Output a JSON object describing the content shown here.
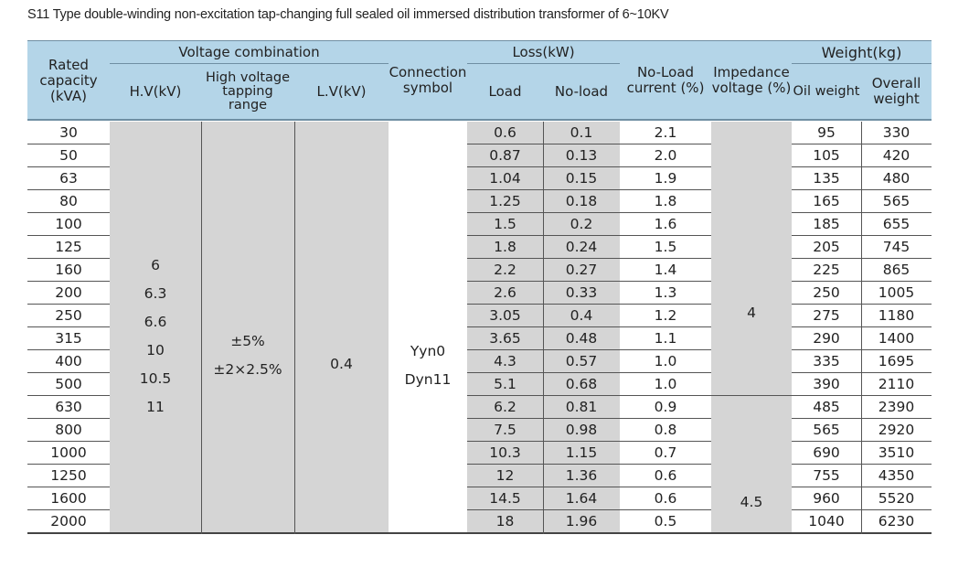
{
  "title": "S11 Type double-winding non-excitation tap-changing full sealed oil immersed distribution transformer of 6~10KV",
  "headers": {
    "rated_capacity": "Rated capacity (kVA)",
    "voltage_combination": "Voltage combination",
    "hv": "H.V(kV)",
    "hv_tapping": "High voltage tapping range",
    "lv": "L.V(kV)",
    "connection": "Connection symbol",
    "loss": "Loss(kW)",
    "load": "Load",
    "noload": "No-load",
    "noload_current": "No-Load current (%)",
    "impedance": "Impedance voltage (%)",
    "weight": "Weight(kg)",
    "oil_weight": "Oil weight",
    "overall_weight": "Overall weight"
  },
  "merged": {
    "hv_values": [
      "6",
      "6.3",
      "6.6",
      "10",
      "10.5",
      "11"
    ],
    "tapping_values": [
      "±5%",
      "±2×2.5%"
    ],
    "lv_value": "0.4",
    "connection_values": [
      "Yyn0",
      "Dyn11"
    ],
    "impedance_top": "4",
    "impedance_bottom": "4.5"
  },
  "rows": [
    {
      "capacity": "30",
      "load": "0.6",
      "noload": "0.1",
      "current": "2.1",
      "oil": "95",
      "overall": "330"
    },
    {
      "capacity": "50",
      "load": "0.87",
      "noload": "0.13",
      "current": "2.0",
      "oil": "105",
      "overall": "420"
    },
    {
      "capacity": "63",
      "load": "1.04",
      "noload": "0.15",
      "current": "1.9",
      "oil": "135",
      "overall": "480"
    },
    {
      "capacity": "80",
      "load": "1.25",
      "noload": "0.18",
      "current": "1.8",
      "oil": "165",
      "overall": "565"
    },
    {
      "capacity": "100",
      "load": "1.5",
      "noload": "0.2",
      "current": "1.6",
      "oil": "185",
      "overall": "655"
    },
    {
      "capacity": "125",
      "load": "1.8",
      "noload": "0.24",
      "current": "1.5",
      "oil": "205",
      "overall": "745"
    },
    {
      "capacity": "160",
      "load": "2.2",
      "noload": "0.27",
      "current": "1.4",
      "oil": "225",
      "overall": "865"
    },
    {
      "capacity": "200",
      "load": "2.6",
      "noload": "0.33",
      "current": "1.3",
      "oil": "250",
      "overall": "1005"
    },
    {
      "capacity": "250",
      "load": "3.05",
      "noload": "0.4",
      "current": "1.2",
      "oil": "275",
      "overall": "1180"
    },
    {
      "capacity": "315",
      "load": "3.65",
      "noload": "0.48",
      "current": "1.1",
      "oil": "290",
      "overall": "1400"
    },
    {
      "capacity": "400",
      "load": "4.3",
      "noload": "0.57",
      "current": "1.0",
      "oil": "335",
      "overall": "1695"
    },
    {
      "capacity": "500",
      "load": "5.1",
      "noload": "0.68",
      "current": "1.0",
      "oil": "390",
      "overall": "2110"
    },
    {
      "capacity": "630",
      "load": "6.2",
      "noload": "0.81",
      "current": "0.9",
      "oil": "485",
      "overall": "2390"
    },
    {
      "capacity": "800",
      "load": "7.5",
      "noload": "0.98",
      "current": "0.8",
      "oil": "565",
      "overall": "2920"
    },
    {
      "capacity": "1000",
      "load": "10.3",
      "noload": "1.15",
      "current": "0.7",
      "oil": "690",
      "overall": "3510"
    },
    {
      "capacity": "1250",
      "load": "12",
      "noload": "1.36",
      "current": "0.6",
      "oil": "755",
      "overall": "4350"
    },
    {
      "capacity": "1600",
      "load": "14.5",
      "noload": "1.64",
      "current": "0.6",
      "oil": "960",
      "overall": "5520"
    },
    {
      "capacity": "2000",
      "load": "18",
      "noload": "1.96",
      "current": "0.5",
      "oil": "1040",
      "overall": "6230"
    }
  ]
}
